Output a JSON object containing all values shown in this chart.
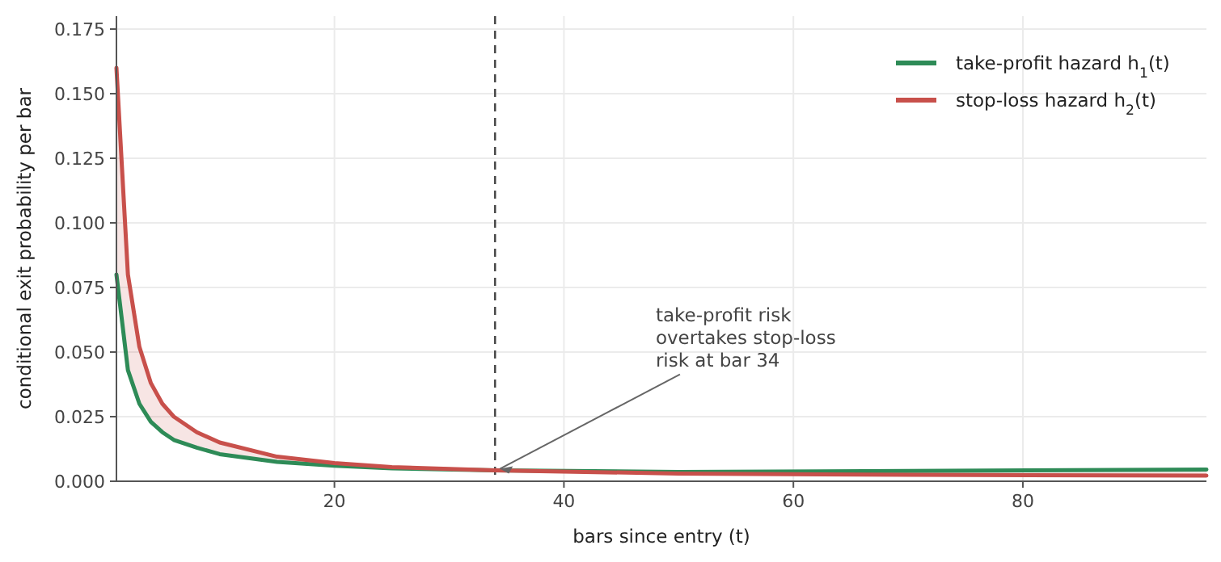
{
  "chart_data": {
    "type": "line",
    "xlabel": "bars since entry  (t)",
    "ylabel": "conditional exit probability per bar",
    "x": [
      1,
      2,
      3,
      4,
      5,
      6,
      8,
      10,
      15,
      20,
      25,
      34,
      50,
      70,
      96
    ],
    "series": [
      {
        "name": "take-profit hazard  h$_{1}$(t)",
        "color": "#2e8b57",
        "values": [
          0.08,
          0.043,
          0.03,
          0.023,
          0.019,
          0.016,
          0.013,
          0.0105,
          0.0075,
          0.006,
          0.005,
          0.0042,
          0.0036,
          0.004,
          0.0045
        ]
      },
      {
        "name": "stop-loss hazard  h$_{2}$(t)",
        "color": "#c8504b",
        "values": [
          0.16,
          0.08,
          0.052,
          0.038,
          0.03,
          0.025,
          0.019,
          0.015,
          0.0095,
          0.007,
          0.0055,
          0.0042,
          0.003,
          0.0025,
          0.0022
        ],
        "lower": [
          0.08,
          0.043,
          0.03,
          0.023,
          0.019,
          0.016,
          0.013,
          0.0105,
          0.0075,
          0.006,
          0.005,
          0.0042,
          0.0036,
          0.004,
          0.0045
        ],
        "upper": [
          0.16,
          0.08,
          0.052,
          0.038,
          0.03,
          0.025,
          0.019,
          0.015,
          0.0095,
          0.007,
          0.0055,
          0.0042,
          0.003,
          0.0025,
          0.0022
        ]
      }
    ],
    "xlim": [
      1,
      96
    ],
    "ylim": [
      0,
      0.18
    ],
    "xticks": [
      20,
      40,
      60,
      80
    ],
    "yticks": [
      {
        "value": 0,
        "label": "0.000"
      },
      {
        "value": 0.025,
        "label": "0.025"
      },
      {
        "value": 0.05,
        "label": "0.050"
      },
      {
        "value": 0.075,
        "label": "0.075"
      },
      {
        "value": 0.1,
        "label": "0.100"
      },
      {
        "value": 0.125,
        "label": "0.125"
      },
      {
        "value": 0.15,
        "label": "0.150"
      },
      {
        "value": 0.175,
        "label": "0.175"
      }
    ],
    "grid": true,
    "legend": "top right",
    "line_style": "solid",
    "marker": "none",
    "ref_lines": [
      {
        "axis": "x",
        "value": 34,
        "color": "#444444",
        "line_style": "dashed"
      }
    ],
    "annotations": [
      {
        "text": "take-profit risk\novertakes stop-loss\nrisk at bar 34",
        "x": 34,
        "y": 0.0042
      }
    ]
  }
}
